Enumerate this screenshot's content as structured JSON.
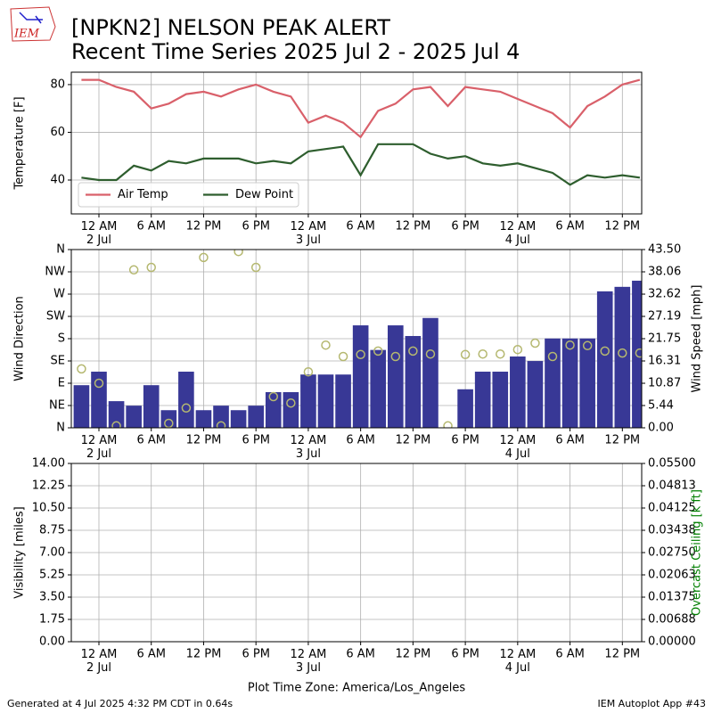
{
  "header": {
    "logo_text": "IEM",
    "title": "[NPKN2] NELSON PEAK ALERT",
    "subtitle": "Recent Time Series 2025 Jul 2 - 2025 Jul 4"
  },
  "footer": {
    "left": "Generated at 4 Jul 2025 4:32 PM CDT in 0.64s",
    "right": "IEM Autoplot App #43"
  },
  "chart_data": [
    {
      "type": "line",
      "ylabel": "Temperature [F]",
      "grid": true,
      "legend": "lower left",
      "xlim": [
        "2025-07-01T20:50",
        "2025-07-04T14:13"
      ],
      "ylim": [
        25.8,
        85.2
      ],
      "yticks": [
        40,
        60,
        80
      ],
      "xticks": [
        {
          "value": "2025-07-02T00:00",
          "label": "12 AM\n2 Jul"
        },
        {
          "value": "2025-07-02T06:00",
          "label": "6 AM"
        },
        {
          "value": "2025-07-02T12:00",
          "label": "12 PM"
        },
        {
          "value": "2025-07-02T18:00",
          "label": "6 PM"
        },
        {
          "value": "2025-07-03T00:00",
          "label": "12 AM\n3 Jul"
        },
        {
          "value": "2025-07-03T06:00",
          "label": "6 AM"
        },
        {
          "value": "2025-07-03T12:00",
          "label": "12 PM"
        },
        {
          "value": "2025-07-03T18:00",
          "label": "6 PM"
        },
        {
          "value": "2025-07-04T00:00",
          "label": "12 AM\n4 Jul"
        },
        {
          "value": "2025-07-04T06:00",
          "label": "6 AM"
        },
        {
          "value": "2025-07-04T12:00",
          "label": "12 PM"
        }
      ],
      "x": [
        "2025-07-01T22:00",
        "2025-07-02T00:00",
        "2025-07-02T02:00",
        "2025-07-02T04:00",
        "2025-07-02T06:00",
        "2025-07-02T08:00",
        "2025-07-02T10:00",
        "2025-07-02T12:00",
        "2025-07-02T14:00",
        "2025-07-02T16:00",
        "2025-07-02T18:00",
        "2025-07-02T20:00",
        "2025-07-02T22:00",
        "2025-07-03T00:00",
        "2025-07-03T02:00",
        "2025-07-03T04:00",
        "2025-07-03T06:00",
        "2025-07-03T08:00",
        "2025-07-03T10:00",
        "2025-07-03T12:00",
        "2025-07-03T14:00",
        "2025-07-03T16:00",
        "2025-07-03T18:00",
        "2025-07-03T20:00",
        "2025-07-03T22:00",
        "2025-07-04T00:00",
        "2025-07-04T02:00",
        "2025-07-04T04:00",
        "2025-07-04T06:00",
        "2025-07-04T08:00",
        "2025-07-04T10:00",
        "2025-07-04T12:00",
        "2025-07-04T14:00"
      ],
      "series": [
        {
          "name": "Air Temp",
          "color": "#d9606a",
          "values": [
            82,
            82,
            79,
            77,
            70,
            72,
            76,
            77,
            75,
            78,
            80,
            77,
            75,
            64,
            67,
            64,
            58,
            69,
            72,
            78,
            79,
            71,
            79,
            78,
            77,
            74,
            71,
            68,
            62,
            71,
            75,
            80,
            82
          ]
        },
        {
          "name": "Dew Point",
          "color": "#2e5e2e",
          "values": [
            41,
            40,
            40,
            46,
            44,
            48,
            47,
            49,
            49,
            49,
            47,
            48,
            47,
            52,
            53,
            54,
            42,
            55,
            55,
            55,
            51,
            49,
            50,
            47,
            46,
            47,
            45,
            43,
            38,
            42,
            41,
            42,
            41
          ]
        }
      ]
    },
    {
      "type": "combo",
      "ylabel": "Wind Direction",
      "y2label": "Wind Speed [mph]",
      "grid": true,
      "xlim": [
        "2025-07-01T20:50",
        "2025-07-04T14:13"
      ],
      "ylim": [
        0,
        360
      ],
      "y2lim": [
        0,
        43.5
      ],
      "yticks": [
        {
          "value": 0,
          "label": "N"
        },
        {
          "value": 45,
          "label": "NE"
        },
        {
          "value": 90,
          "label": "E"
        },
        {
          "value": 135,
          "label": "SE"
        },
        {
          "value": 180,
          "label": "S"
        },
        {
          "value": 225,
          "label": "SW"
        },
        {
          "value": 270,
          "label": "W"
        },
        {
          "value": 315,
          "label": "NW"
        },
        {
          "value": 360,
          "label": "N"
        }
      ],
      "y2ticks": [
        {
          "value": 0,
          "label": "0.00"
        },
        {
          "value": 5.44,
          "label": "5.44"
        },
        {
          "value": 10.87,
          "label": "10.87"
        },
        {
          "value": 16.31,
          "label": "16.31"
        },
        {
          "value": 21.75,
          "label": "21.75"
        },
        {
          "value": 27.19,
          "label": "27.19"
        },
        {
          "value": 32.62,
          "label": "32.62"
        },
        {
          "value": 38.06,
          "label": "38.06"
        },
        {
          "value": 43.5,
          "label": "43.50"
        }
      ],
      "xticks": [
        {
          "value": "2025-07-02T00:00",
          "label": "12 AM\n2 Jul"
        },
        {
          "value": "2025-07-02T06:00",
          "label": "6 AM"
        },
        {
          "value": "2025-07-02T12:00",
          "label": "12 PM"
        },
        {
          "value": "2025-07-02T18:00",
          "label": "6 PM"
        },
        {
          "value": "2025-07-03T00:00",
          "label": "12 AM\n3 Jul"
        },
        {
          "value": "2025-07-03T06:00",
          "label": "6 AM"
        },
        {
          "value": "2025-07-03T12:00",
          "label": "12 PM"
        },
        {
          "value": "2025-07-03T18:00",
          "label": "6 PM"
        },
        {
          "value": "2025-07-04T00:00",
          "label": "12 AM\n4 Jul"
        },
        {
          "value": "2025-07-04T06:00",
          "label": "6 AM"
        },
        {
          "value": "2025-07-04T12:00",
          "label": "12 PM"
        }
      ],
      "x": [
        "2025-07-01T22:00",
        "2025-07-02T00:00",
        "2025-07-02T02:00",
        "2025-07-02T04:00",
        "2025-07-02T06:00",
        "2025-07-02T08:00",
        "2025-07-02T10:00",
        "2025-07-02T12:00",
        "2025-07-02T14:00",
        "2025-07-02T16:00",
        "2025-07-02T18:00",
        "2025-07-02T20:00",
        "2025-07-02T22:00",
        "2025-07-03T00:00",
        "2025-07-03T02:00",
        "2025-07-03T04:00",
        "2025-07-03T06:00",
        "2025-07-03T08:00",
        "2025-07-03T10:00",
        "2025-07-03T12:00",
        "2025-07-03T14:00",
        "2025-07-03T16:00",
        "2025-07-03T18:00",
        "2025-07-03T20:00",
        "2025-07-03T22:00",
        "2025-07-04T00:00",
        "2025-07-04T02:00",
        "2025-07-04T04:00",
        "2025-07-04T06:00",
        "2025-07-04T08:00",
        "2025-07-04T10:00",
        "2025-07-04T12:00",
        "2025-07-04T14:00"
      ],
      "series": [
        {
          "kind": "bar",
          "axis": "y2",
          "color": "#383896",
          "values": [
            10.4,
            13.7,
            6.5,
            5.4,
            10.4,
            4.3,
            13.7,
            4.3,
            5.4,
            4.3,
            5.4,
            8.7,
            8.7,
            13,
            13,
            13,
            25,
            19,
            25,
            22.4,
            26.8,
            0,
            9.4,
            13.7,
            13.7,
            17.4,
            16.3,
            21.8,
            21.8,
            21.8,
            33.3,
            34.4,
            35.9
          ]
        },
        {
          "kind": "scatter",
          "color": "#b5b870",
          "values": [
            119,
            90,
            4,
            319,
            324,
            9,
            40,
            344,
            4,
            356,
            324,
            63,
            50,
            113,
            167,
            144,
            148,
            155,
            144,
            155,
            149,
            4,
            148,
            149,
            149,
            158,
            171,
            144,
            167,
            166,
            155,
            151,
            151
          ]
        }
      ]
    },
    {
      "type": "line",
      "ylabel": "Visibility [miles]",
      "y2label": "Overcast Ceiling [k ft]",
      "y2label_color": "#008000",
      "grid": true,
      "xlim": [
        "2025-07-01T20:50",
        "2025-07-04T14:13"
      ],
      "ylim": [
        0,
        14
      ],
      "y2lim": [
        0,
        0.055
      ],
      "yticks": [
        {
          "value": 0,
          "label": "0.00"
        },
        {
          "value": 1.75,
          "label": "1.75"
        },
        {
          "value": 3.5,
          "label": "3.50"
        },
        {
          "value": 5.25,
          "label": "5.25"
        },
        {
          "value": 7,
          "label": "7.00"
        },
        {
          "value": 8.75,
          "label": "8.75"
        },
        {
          "value": 10.5,
          "label": "10.50"
        },
        {
          "value": 12.25,
          "label": "12.25"
        },
        {
          "value": 14,
          "label": "14.00"
        }
      ],
      "y2ticks": [
        {
          "value": 0,
          "label": "0.00000"
        },
        {
          "value": 0.006875,
          "label": "0.00688"
        },
        {
          "value": 0.01375,
          "label": "0.01375"
        },
        {
          "value": 0.020625,
          "label": "0.02063"
        },
        {
          "value": 0.0275,
          "label": "0.02750"
        },
        {
          "value": 0.034375,
          "label": "0.03438"
        },
        {
          "value": 0.04125,
          "label": "0.04125"
        },
        {
          "value": 0.048125,
          "label": "0.04813"
        },
        {
          "value": 0.055,
          "label": "0.05500"
        }
      ],
      "xticks": [
        {
          "value": "2025-07-02T00:00",
          "label": "12 AM\n2 Jul"
        },
        {
          "value": "2025-07-02T06:00",
          "label": "6 AM"
        },
        {
          "value": "2025-07-02T12:00",
          "label": "12 PM"
        },
        {
          "value": "2025-07-02T18:00",
          "label": "6 PM"
        },
        {
          "value": "2025-07-03T00:00",
          "label": "12 AM\n3 Jul"
        },
        {
          "value": "2025-07-03T06:00",
          "label": "6 AM"
        },
        {
          "value": "2025-07-03T12:00",
          "label": "12 PM"
        },
        {
          "value": "2025-07-03T18:00",
          "label": "6 PM"
        },
        {
          "value": "2025-07-04T00:00",
          "label": "12 AM\n4 Jul"
        },
        {
          "value": "2025-07-04T06:00",
          "label": "6 AM"
        },
        {
          "value": "2025-07-04T12:00",
          "label": "12 PM"
        }
      ],
      "xlabel": "Plot Time Zone: America/Los_Angeles",
      "series": []
    }
  ]
}
